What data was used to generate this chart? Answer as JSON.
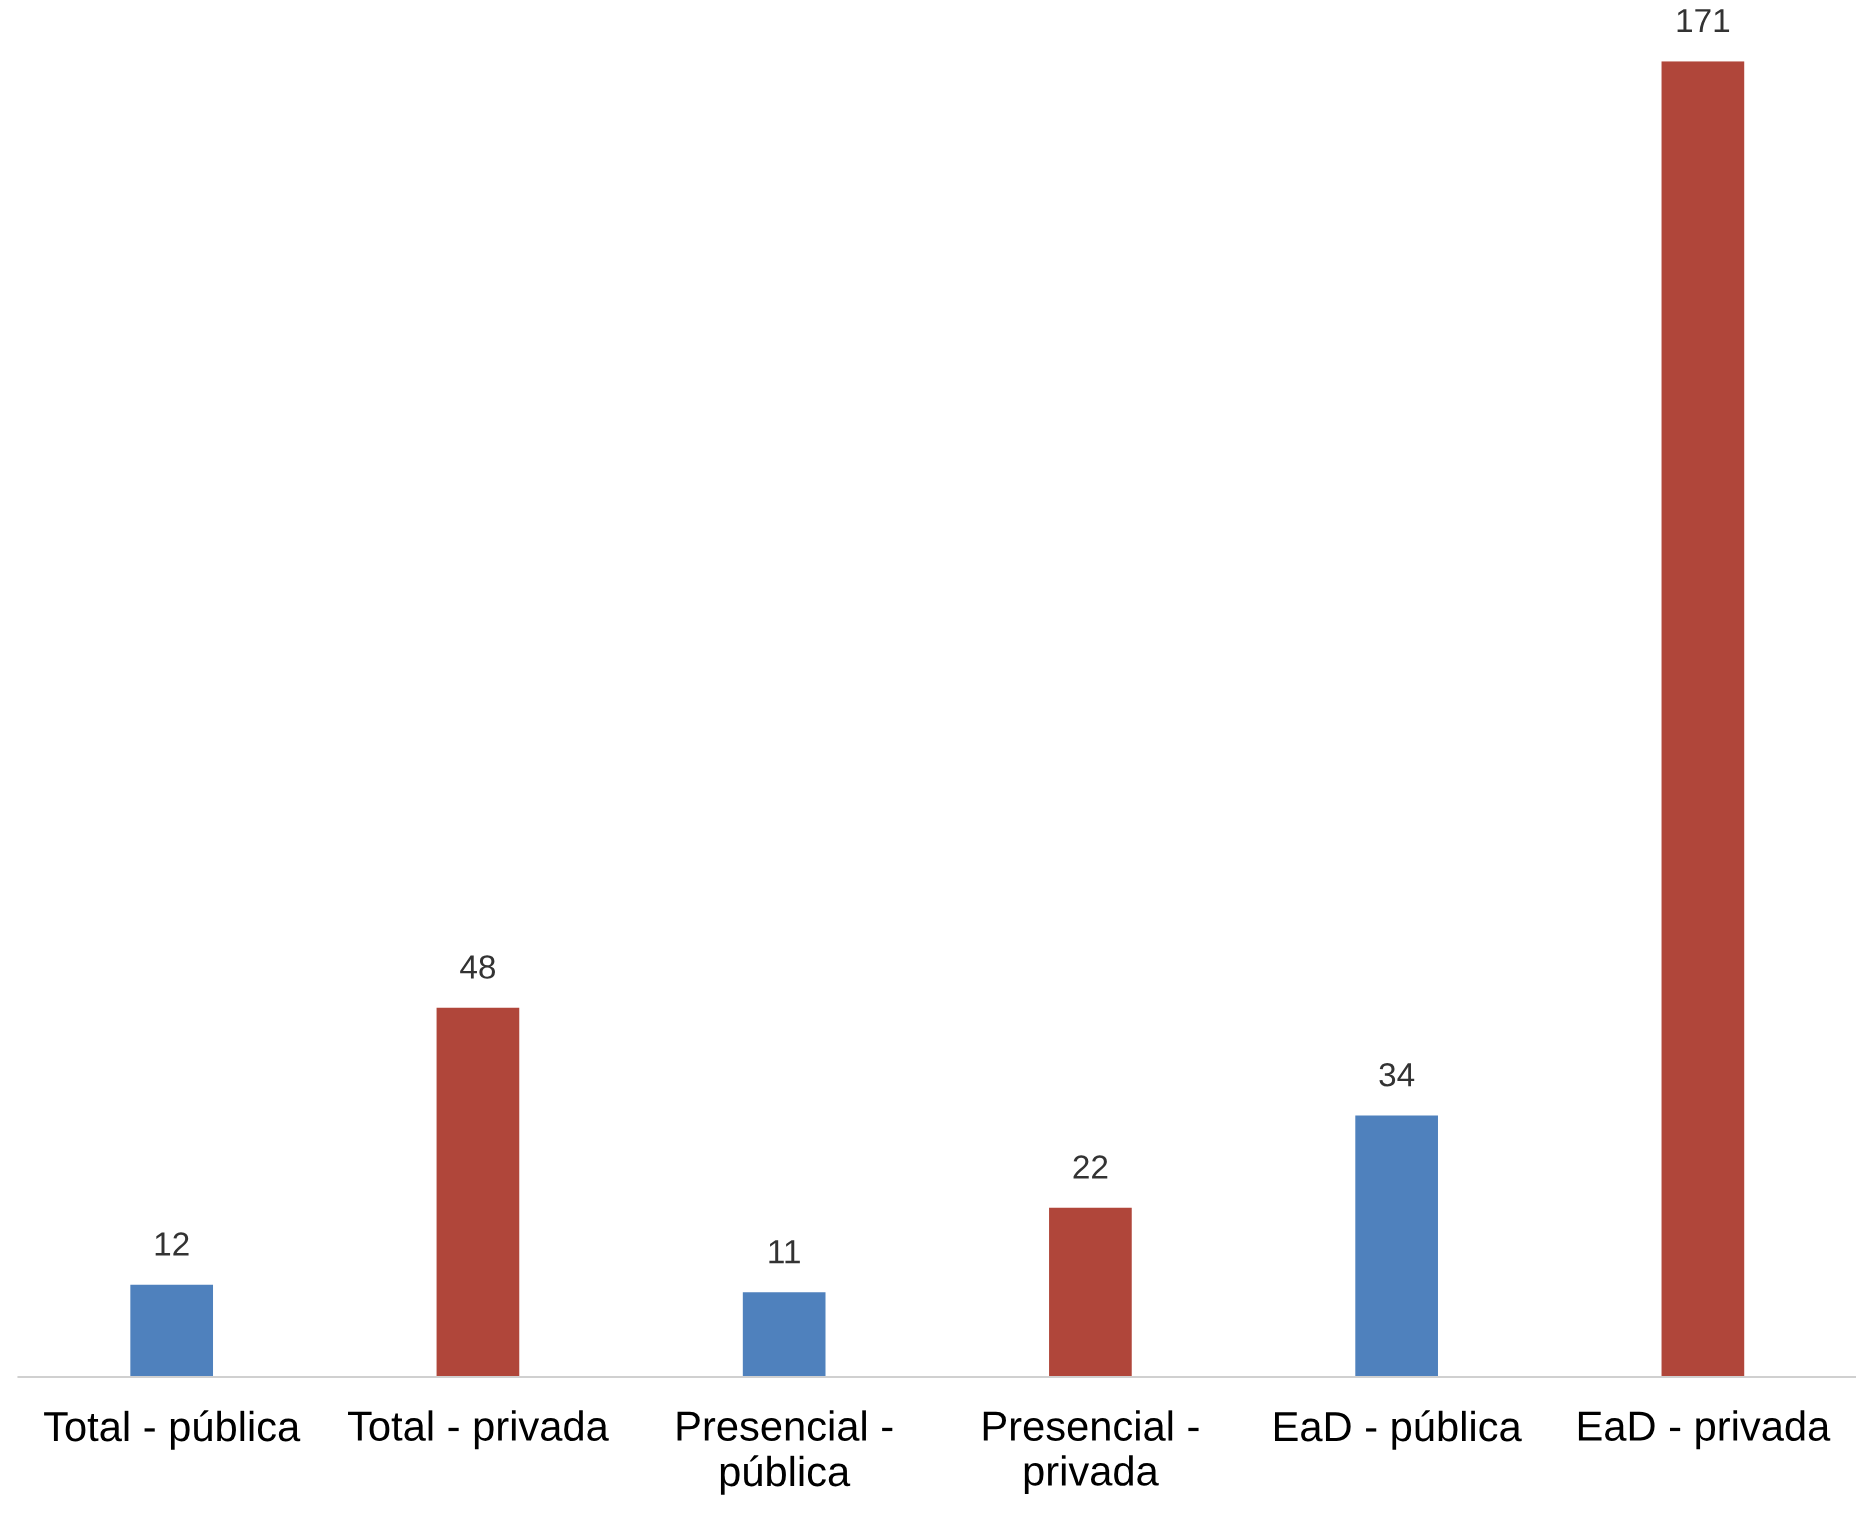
{
  "chart_data": {
    "type": "bar",
    "categories": [
      "Total - pública",
      "Total - privada",
      "Presencial -\npública",
      "Presencial -\nprivada",
      "EaD - pública",
      "EaD - privada"
    ],
    "values": [
      12,
      48,
      11,
      22,
      34,
      171
    ],
    "colors": [
      "#4f81bd",
      "#b0463a",
      "#4f81bd",
      "#b0463a",
      "#4f81bd",
      "#b0463a"
    ],
    "data_labels": true,
    "grid": false,
    "legend": false
  }
}
